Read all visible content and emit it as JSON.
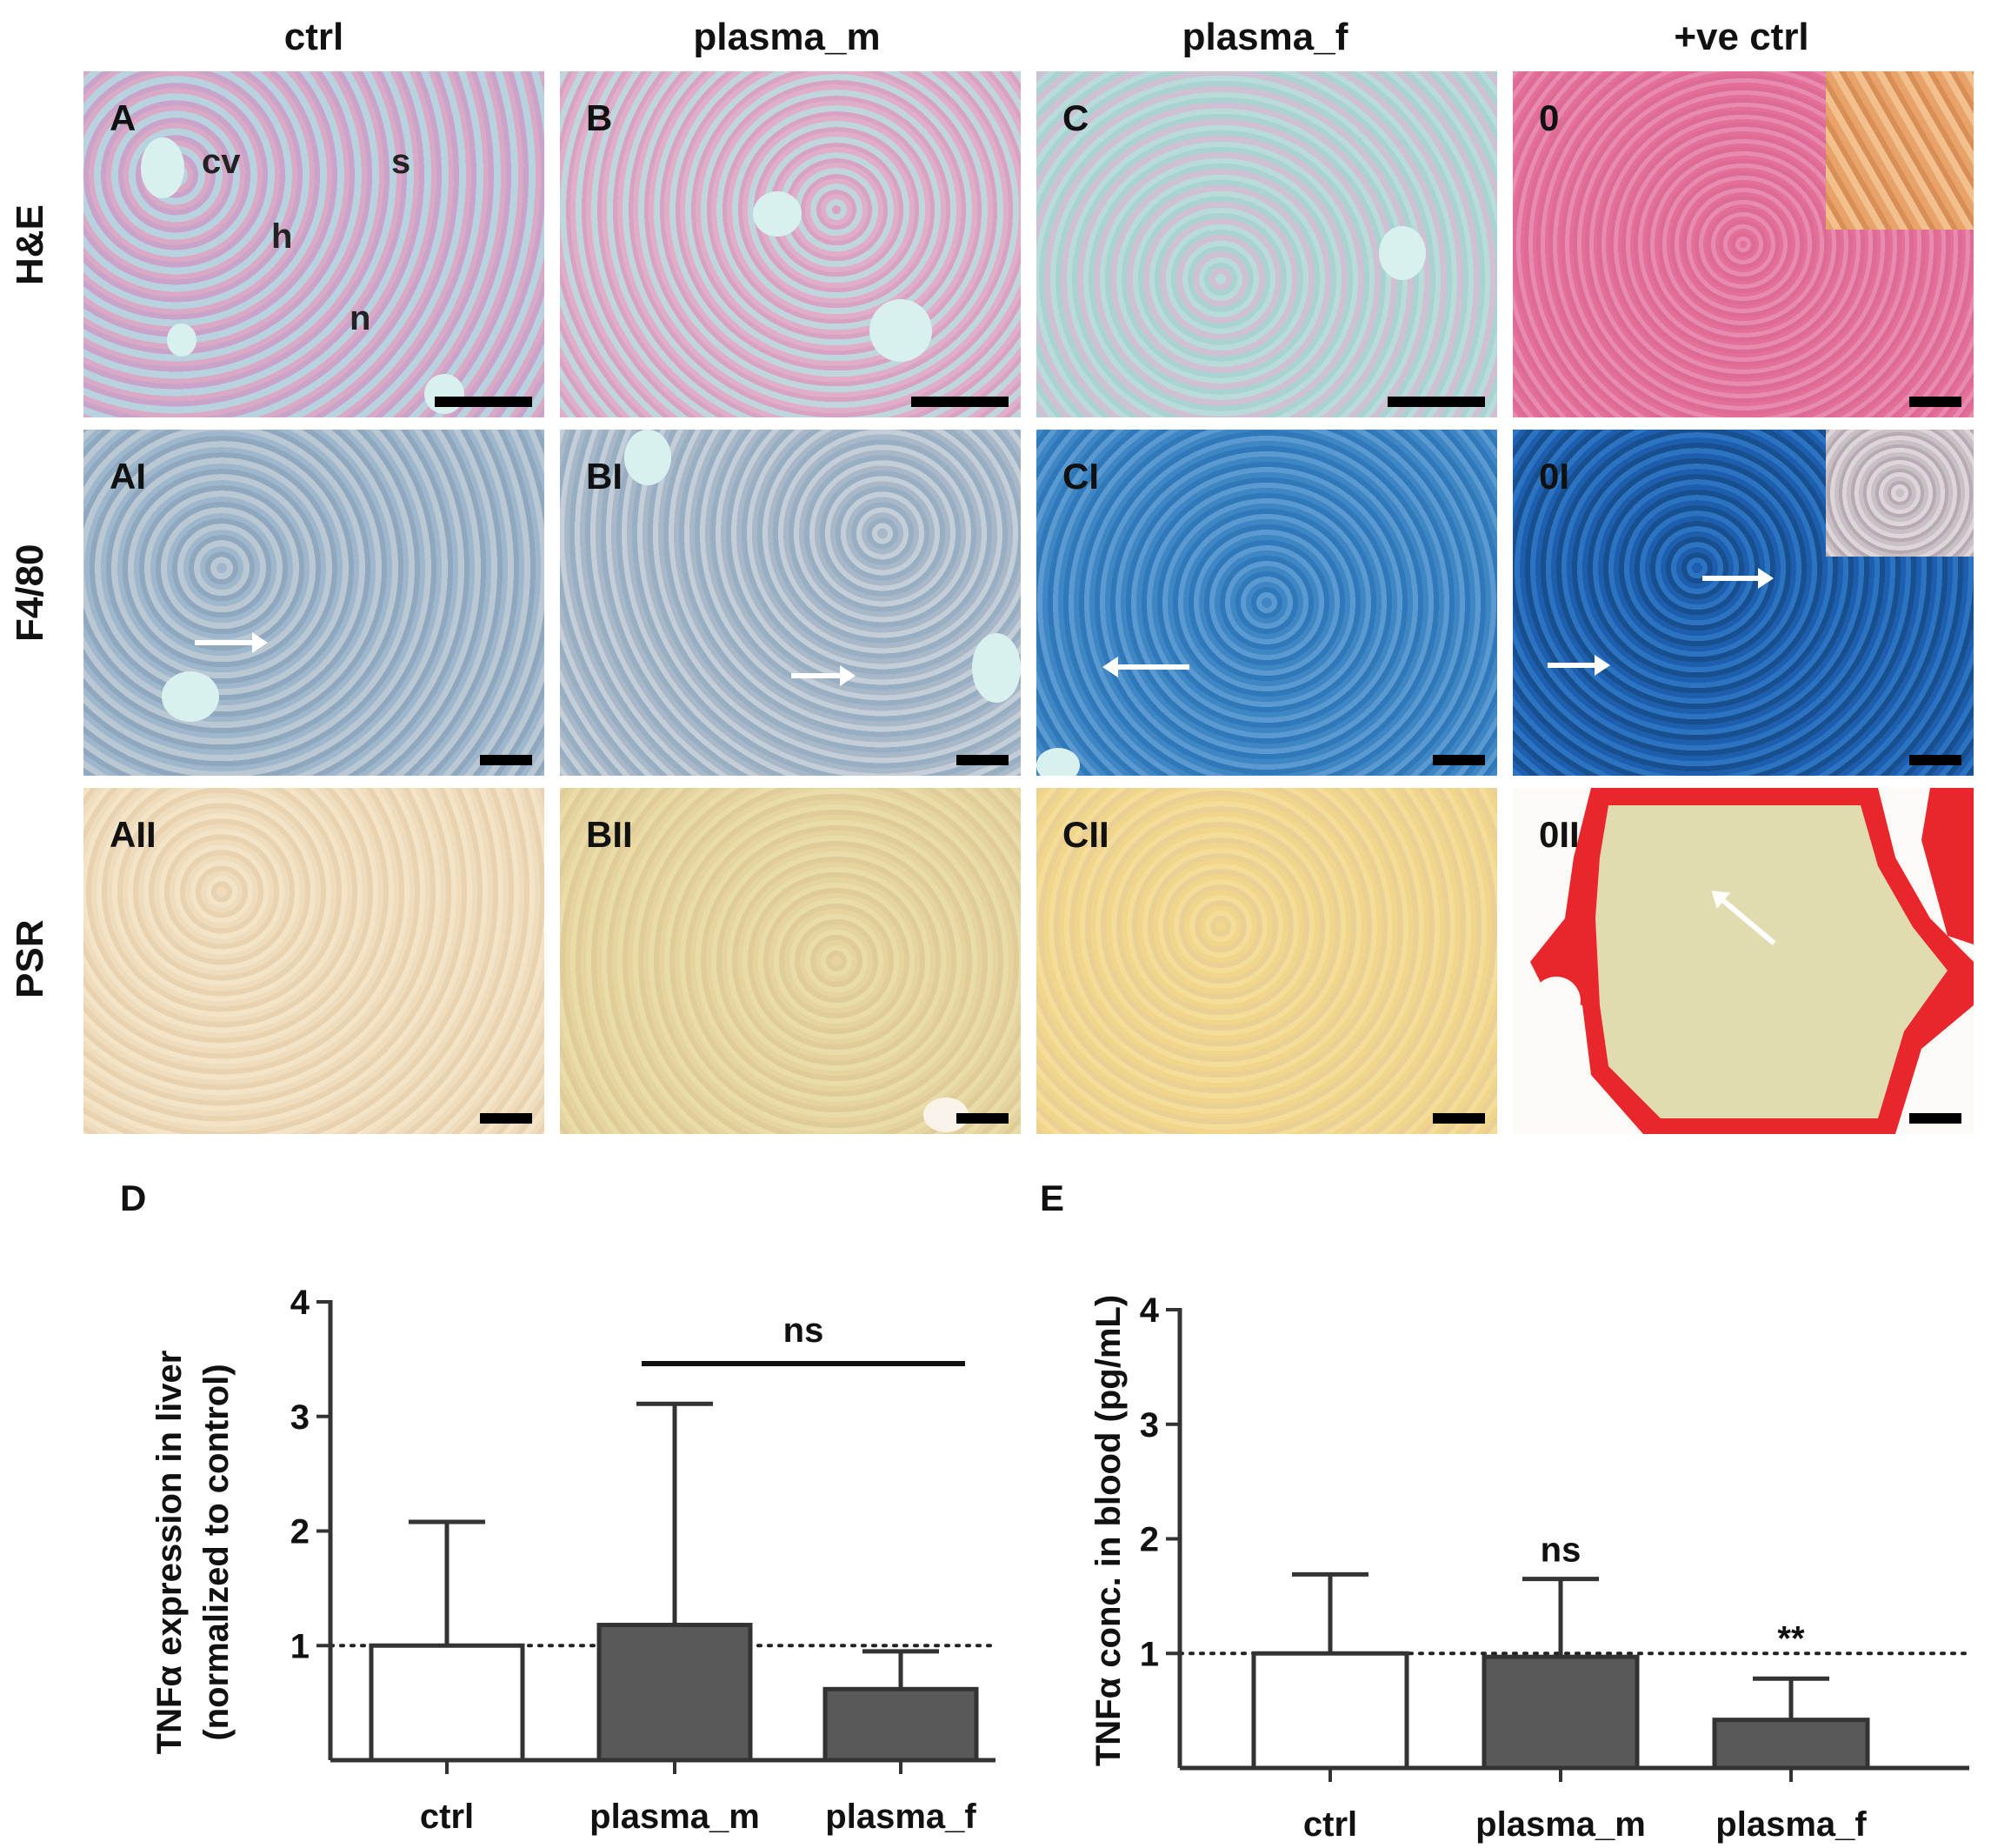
{
  "columns": [
    "ctrl",
    "plasma_m",
    "plasma_f",
    "+ve ctrl"
  ],
  "rows": [
    "H&E",
    "F4/80",
    "PSR"
  ],
  "panels": {
    "r0": [
      "A",
      "B",
      "C",
      "0"
    ],
    "r1": [
      "AI",
      "BI",
      "CI",
      "0I"
    ],
    "r2": [
      "AII",
      "BII",
      "CII",
      "0II"
    ]
  },
  "he_labels": {
    "cv": "cv",
    "s": "s",
    "h": "h",
    "n": "n"
  },
  "chart_letters": {
    "d": "D",
    "e": "E"
  },
  "colors": {
    "open_bar": "#ffffff",
    "filled_bar": "#595959",
    "outline": "#333333",
    "psr_red": "#e8262b"
  },
  "chart_data": [
    {
      "type": "bar",
      "panel": "D",
      "categories": [
        "ctrl",
        "plasma_m",
        "plasma_f"
      ],
      "values": [
        1.0,
        1.18,
        0.62
      ],
      "errors_upper": [
        2.08,
        3.11,
        0.95
      ],
      "ylabel_line1": "TNFα expression in liver",
      "ylabel_line2": "(normalized to control)",
      "ylim": [
        0,
        4
      ],
      "yticks": [
        "1",
        "2",
        "3",
        "4"
      ],
      "reference_line": 1,
      "annotations": [
        {
          "text": "ns",
          "from": "plasma_m",
          "to": "plasma_f"
        }
      ]
    },
    {
      "type": "bar",
      "panel": "E",
      "categories": [
        "ctrl",
        "plasma_m",
        "plasma_f"
      ],
      "values": [
        1.0,
        0.97,
        0.42
      ],
      "errors_upper": [
        1.69,
        1.65,
        0.78
      ],
      "ylabel": "TNFα conc. in blood (pg/mL)",
      "ylim": [
        0,
        4
      ],
      "yticks": [
        "1",
        "2",
        "3",
        "4"
      ],
      "reference_line": 1,
      "annotations": [
        {
          "text": "ns",
          "over": "plasma_m"
        },
        {
          "text": "**",
          "over": "plasma_f"
        }
      ]
    }
  ]
}
